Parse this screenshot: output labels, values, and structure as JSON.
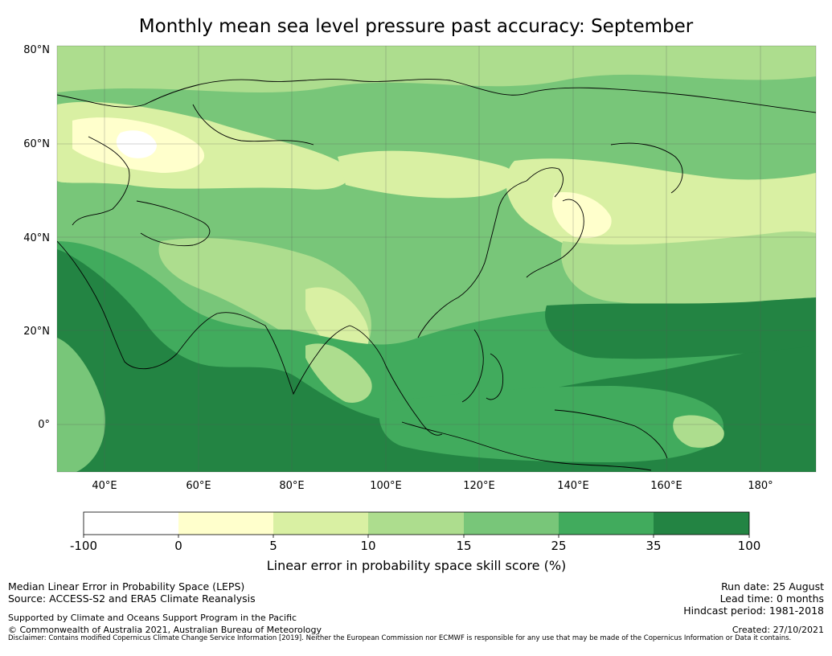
{
  "title": "Monthly mean sea level pressure past accuracy: September",
  "map": {
    "lat_ticks": [
      "80°N",
      "60°N",
      "40°N",
      "20°N",
      "0°"
    ],
    "lon_ticks": [
      "40°E",
      "60°E",
      "80°E",
      "100°E",
      "120°E",
      "140°E",
      "160°E",
      "180°"
    ],
    "lon_range": [
      30,
      192
    ],
    "lat_range": [
      -10,
      81
    ],
    "colors": {
      "c0": "#ffffff",
      "c1": "#ffffcc",
      "c2": "#d9f0a3",
      "c3": "#addd8e",
      "c4": "#78c679",
      "c5": "#41ab5d",
      "c6": "#238443"
    }
  },
  "colorbar": {
    "ticks": [
      "-100",
      "0",
      "5",
      "10",
      "15",
      "25",
      "35",
      "100"
    ],
    "label": "Linear error in probability space skill score (%)"
  },
  "footer": {
    "line1": "Median Linear Error in Probability Space (LEPS)",
    "line2": "Source: ACCESS-S2 and ERA5 Climate Reanalysis",
    "support": "Supported by Climate and Oceans Support Program in the Pacific",
    "copyright": "© Commonwealth of Australia 2021, Australian Bureau of Meteorology",
    "run_date": "Run date: 25 August",
    "lead_time": "Lead time: 0 months",
    "hindcast": "Hindcast period: 1981-2018",
    "created": "Created: 27/10/2021",
    "disclaimer": "Disclaimer: Contains modified Copernicus Climate Change Service Information [2019]. Neither the European Commission nor ECMWF is responsible for any use that may be made of the Copernicus Information or Data it contains."
  }
}
